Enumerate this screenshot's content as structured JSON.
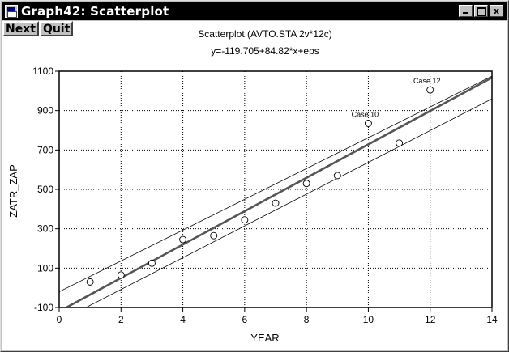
{
  "window": {
    "title": "Graph42: Scatterplot",
    "buttons": {
      "minimize": "_",
      "maximize": "",
      "close": "x"
    }
  },
  "toolbar": {
    "next_label": "Next",
    "quit_label": "Quit"
  },
  "chart_data": {
    "type": "scatter",
    "title": "Scatterplot (AVTO.STA 2v*12c)",
    "subtitle": "y=-119.705+84.82*x+eps",
    "xlabel": "YEAR",
    "ylabel": "ZATR_ZAP",
    "xlim": [
      0,
      14
    ],
    "ylim": [
      -100,
      1100
    ],
    "xticks": [
      "0",
      "2",
      "4",
      "6",
      "8",
      "10",
      "12",
      "14"
    ],
    "xtick_values": [
      0,
      2,
      4,
      6,
      8,
      10,
      12,
      14
    ],
    "yticks": [
      "-100",
      "100",
      "300",
      "500",
      "700",
      "900",
      "1100"
    ],
    "ytick_values": [
      -100,
      100,
      300,
      500,
      700,
      900,
      1100
    ],
    "grid": true,
    "points": [
      {
        "x": 1,
        "y": 30
      },
      {
        "x": 2,
        "y": 65
      },
      {
        "x": 3,
        "y": 125
      },
      {
        "x": 4,
        "y": 245
      },
      {
        "x": 5,
        "y": 265
      },
      {
        "x": 6,
        "y": 345
      },
      {
        "x": 7,
        "y": 430
      },
      {
        "x": 8,
        "y": 530
      },
      {
        "x": 9,
        "y": 570
      },
      {
        "x": 10,
        "y": 835,
        "label": "Case 10"
      },
      {
        "x": 11,
        "y": 735
      },
      {
        "x": 12,
        "y": 1005,
        "label": "Case 12"
      }
    ],
    "regression": {
      "intercept": -119.705,
      "slope": 84.82
    },
    "confidence_band": {
      "upper": [
        [
          0,
          -20
        ],
        [
          14,
          1075
        ]
      ],
      "lower": [
        [
          0,
          -170
        ],
        [
          14,
          960
        ]
      ]
    }
  }
}
